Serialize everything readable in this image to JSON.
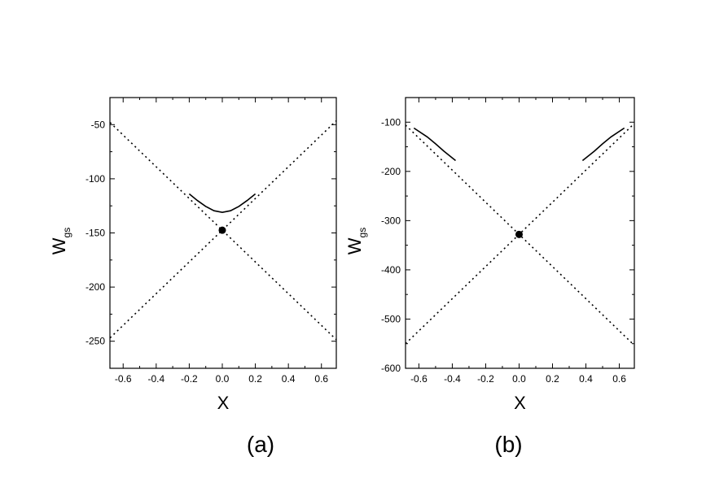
{
  "chart_data": [
    {
      "type": "line",
      "panel_label": "(a)",
      "x_label": "X",
      "y_label": "W",
      "y_label_sub": "gs",
      "xlim": [
        -0.68,
        0.69
      ],
      "ylim": [
        -275,
        -25
      ],
      "xticks": [
        -0.6,
        -0.4,
        -0.2,
        {
          "value": 0,
          "label": "0.0"
        },
        0.2,
        0.4,
        0.6
      ],
      "yticks": [
        -250,
        -200,
        -150,
        -100,
        -50
      ],
      "series": [
        {
          "style": "dotted",
          "color": "#000000",
          "x": [
            -0.7,
            0.7
          ],
          "values": [
            -45,
            -250
          ]
        },
        {
          "style": "dotted",
          "color": "#000000",
          "x": [
            -0.7,
            0.7
          ],
          "values": [
            -250,
            -45
          ]
        },
        {
          "style": "solid",
          "color": "#000000",
          "x": [
            -0.2,
            -0.15,
            -0.1,
            -0.05,
            0,
            0.05,
            0.1,
            0.15,
            0.2
          ],
          "values": [
            -114,
            -120.1,
            -125.5,
            -129.5,
            -131,
            -129.5,
            -125.5,
            -120.1,
            -114
          ]
        },
        {
          "style": "marker",
          "color": "#000000",
          "x": [
            0
          ],
          "values": [
            -147.5
          ]
        }
      ]
    },
    {
      "type": "line",
      "panel_label": "(b)",
      "x_label": "X",
      "y_label": "W",
      "y_label_sub": "gs",
      "xlim": [
        -0.68,
        0.69
      ],
      "ylim": [
        -600,
        -50
      ],
      "xticks": [
        -0.6,
        -0.4,
        -0.2,
        {
          "value": 0,
          "label": "0.0"
        },
        0.2,
        0.4,
        0.6
      ],
      "yticks": [
        -600,
        -500,
        -400,
        -300,
        -200,
        -100
      ],
      "series": [
        {
          "style": "dotted",
          "color": "#000000",
          "x": [
            -0.68,
            0.68
          ],
          "values": [
            -106,
            -550
          ]
        },
        {
          "style": "dotted",
          "color": "#000000",
          "x": [
            -0.68,
            0.68
          ],
          "values": [
            -550,
            -106
          ]
        },
        {
          "style": "solid",
          "color": "#000000",
          "x": [
            -0.63,
            -0.55,
            -0.5,
            -0.45,
            -0.38
          ],
          "values": [
            -112,
            -130,
            -144,
            -159,
            -178
          ]
        },
        {
          "style": "solid",
          "color": "#000000",
          "x": [
            0.38,
            0.45,
            0.5,
            0.55,
            0.63
          ],
          "values": [
            -178,
            -159,
            -144,
            -130,
            -112
          ]
        },
        {
          "style": "marker",
          "color": "#000000",
          "x": [
            0
          ],
          "values": [
            -328
          ]
        }
      ]
    }
  ]
}
